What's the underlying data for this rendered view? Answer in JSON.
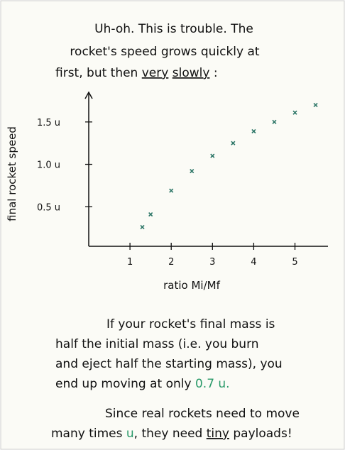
{
  "intro": {
    "lines": [
      [
        "Uh-oh. This is trouble. The"
      ],
      [
        "rocket's speed grows quickly at"
      ],
      [
        "first, but then",
        "very",
        "slowly",
        ":"
      ]
    ]
  },
  "chart_data": {
    "type": "scatter",
    "y_label": "final rocket speed",
    "x_label": "ratio Mi/Mf",
    "x": [
      1.3,
      1.5,
      2,
      2.5,
      3,
      3.5,
      4,
      4.5,
      5,
      5.5
    ],
    "series": [
      {
        "color": "#2b7566",
        "values": [
          0.26,
          0.41,
          0.69,
          0.92,
          1.1,
          1.25,
          1.39,
          1.5,
          1.61,
          1.7
        ]
      }
    ],
    "xlim": [
      0,
      5.8
    ],
    "ylim": [
      0,
      1.85
    ],
    "xticks": [
      1,
      2,
      3,
      4,
      5
    ],
    "yticks": [
      {
        "value": 0.5,
        "label": "0.5 u"
      },
      {
        "value": 1.0,
        "label": "1.0 u"
      },
      {
        "value": 1.5,
        "label": "1.5 u"
      }
    ]
  },
  "notes": [
    [
      "If your rocket's final mass is",
      "half the initial mass (i.e. you burn",
      "and eject half the starting mass), you",
      [
        "end up moving at only",
        "0.7 u."
      ]
    ],
    [
      "Since real rockets need to move",
      [
        "many times",
        "u",
        ", they need",
        "tiny",
        "payloads!"
      ]
    ]
  ]
}
